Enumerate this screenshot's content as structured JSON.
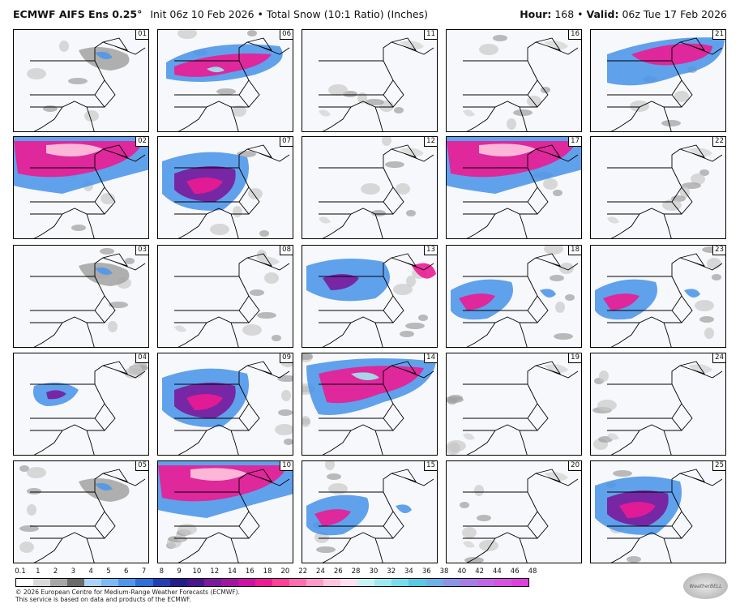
{
  "header": {
    "model": "ECMWF AIFS Ens 0.25°",
    "init": "Init 06z 10 Feb 2026 • Total Snow (10:1 Ratio) (Inches)",
    "hour_label": "Hour:",
    "hour_value": "168",
    "valid_label": "Valid:",
    "valid_value": "06z Tue 17 Feb 2026"
  },
  "panels": [
    {
      "member": "01",
      "col": 0,
      "row": 0,
      "snow": "light"
    },
    {
      "member": "06",
      "col": 1,
      "row": 0,
      "snow": "heavy-north"
    },
    {
      "member": "11",
      "col": 2,
      "row": 0,
      "snow": "none"
    },
    {
      "member": "16",
      "col": 3,
      "row": 0,
      "snow": "none"
    },
    {
      "member": "21",
      "col": 4,
      "row": 0,
      "snow": "heavy-northeast"
    },
    {
      "member": "02",
      "col": 0,
      "row": 1,
      "snow": "heavy-top"
    },
    {
      "member": "07",
      "col": 1,
      "row": 1,
      "snow": "heavy-mid"
    },
    {
      "member": "12",
      "col": 2,
      "row": 1,
      "snow": "none"
    },
    {
      "member": "17",
      "col": 3,
      "row": 1,
      "snow": "heavy-top"
    },
    {
      "member": "22",
      "col": 4,
      "row": 1,
      "snow": "none"
    },
    {
      "member": "03",
      "col": 0,
      "row": 2,
      "snow": "light"
    },
    {
      "member": "08",
      "col": 1,
      "row": 2,
      "snow": "none"
    },
    {
      "member": "13",
      "col": 2,
      "row": 2,
      "snow": "moderate"
    },
    {
      "member": "18",
      "col": 3,
      "row": 2,
      "snow": "moderate-south"
    },
    {
      "member": "23",
      "col": 4,
      "row": 2,
      "snow": "moderate-south"
    },
    {
      "member": "04",
      "col": 0,
      "row": 3,
      "snow": "moderate-small"
    },
    {
      "member": "09",
      "col": 1,
      "row": 3,
      "snow": "heavy-mid"
    },
    {
      "member": "14",
      "col": 2,
      "row": 3,
      "snow": "heavy-band"
    },
    {
      "member": "19",
      "col": 3,
      "row": 3,
      "snow": "none"
    },
    {
      "member": "24",
      "col": 4,
      "row": 3,
      "snow": "none"
    },
    {
      "member": "05",
      "col": 0,
      "row": 4,
      "snow": "light"
    },
    {
      "member": "10",
      "col": 1,
      "row": 4,
      "snow": "heavy-top"
    },
    {
      "member": "15",
      "col": 2,
      "row": 4,
      "snow": "moderate-south"
    },
    {
      "member": "20",
      "col": 3,
      "row": 4,
      "snow": "none"
    },
    {
      "member": "25",
      "col": 4,
      "row": 4,
      "snow": "heavy-mid"
    }
  ],
  "scale": {
    "labels": [
      "0.1",
      "1",
      "2",
      "3",
      "4",
      "5",
      "6",
      "7",
      "8",
      "9",
      "10",
      "12",
      "14",
      "16",
      "18",
      "20",
      "22",
      "24",
      "26",
      "28",
      "30",
      "32",
      "34",
      "36",
      "38",
      "40",
      "42",
      "44",
      "46",
      "48"
    ],
    "colors": [
      "#ffffff",
      "#d9d9d9",
      "#a6a6a6",
      "#6b6b6b",
      "#a9d4f7",
      "#7bbaf2",
      "#4f97ea",
      "#2f6fd9",
      "#2340b3",
      "#241e8a",
      "#4a168c",
      "#7a1a9c",
      "#a1169f",
      "#cb12a5",
      "#ec1b93",
      "#ff3f98",
      "#ff6fb0",
      "#ff9bc8",
      "#ffc5df",
      "#ffe0ef",
      "#c8f2f3",
      "#9fe8ee",
      "#77dde9",
      "#5ac9e2",
      "#6fb0e6",
      "#8a95e6",
      "#a77de5",
      "#c067e4",
      "#d653e2",
      "#e03fe0"
    ]
  },
  "footer": {
    "line1": "© 2026 European Centre for Medium-Range Weather Forecasts (ECMWF).",
    "line2": "This service is based on data and products of the ECMWF."
  },
  "logo": {
    "text": "WeatherBELL"
  }
}
